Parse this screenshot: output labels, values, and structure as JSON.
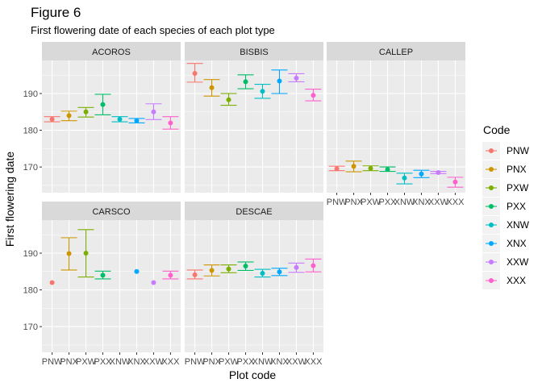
{
  "chart_data": {
    "type": "scatter",
    "title": "Figure 6",
    "subtitle": "First flowering date of each species of each plot type",
    "xlabel": "Plot code",
    "ylabel": "First flowering date",
    "ylim": [
      163,
      199
    ],
    "y_ticks": [
      170,
      180,
      190
    ],
    "categories": [
      "PNW",
      "PNX",
      "PXW",
      "PXX",
      "XNW",
      "XNX",
      "XXW",
      "XXX"
    ],
    "legend": {
      "title": "Code",
      "position": "right",
      "items": [
        "PNW",
        "PNX",
        "PXW",
        "PXX",
        "XNW",
        "XNX",
        "XXW",
        "XXX"
      ]
    },
    "colors": [
      "#F8766D",
      "#CD9600",
      "#7CAE00",
      "#00BE67",
      "#00BFC4",
      "#00A9FF",
      "#C77CFF",
      "#FF61CC"
    ],
    "panel_background": "#EBEBEB",
    "strip_background": "#D9D9D9",
    "grid": true,
    "facets": [
      {
        "name": "ACOROS",
        "points": [
          {
            "code": "PNW",
            "mean": 183.0,
            "low": 182.3,
            "high": 183.7
          },
          {
            "code": "PNX",
            "mean": 184.0,
            "low": 182.6,
            "high": 185.2
          },
          {
            "code": "PXW",
            "mean": 185.0,
            "low": 183.6,
            "high": 186.2
          },
          {
            "code": "PXX",
            "mean": 187.0,
            "low": 184.2,
            "high": 189.8
          },
          {
            "code": "XNW",
            "mean": 183.0,
            "low": 182.3,
            "high": 183.7
          },
          {
            "code": "XNX",
            "mean": 182.6,
            "low": 182.0,
            "high": 183.2
          },
          {
            "code": "XXW",
            "mean": 185.0,
            "low": 182.9,
            "high": 187.2
          },
          {
            "code": "XXX",
            "mean": 182.0,
            "low": 180.3,
            "high": 183.7
          }
        ]
      },
      {
        "name": "BISBIS",
        "points": [
          {
            "code": "PNW",
            "mean": 195.5,
            "low": 193.1,
            "high": 198.2
          },
          {
            "code": "PNX",
            "mean": 191.6,
            "low": 189.3,
            "high": 193.8
          },
          {
            "code": "PXW",
            "mean": 188.3,
            "low": 186.8,
            "high": 190.0
          },
          {
            "code": "PXX",
            "mean": 193.2,
            "low": 191.3,
            "high": 195.1
          },
          {
            "code": "XNW",
            "mean": 190.6,
            "low": 188.7,
            "high": 192.5
          },
          {
            "code": "XNX",
            "mean": 193.4,
            "low": 190.0,
            "high": 196.4
          },
          {
            "code": "XXW",
            "mean": 194.2,
            "low": 193.2,
            "high": 195.4
          },
          {
            "code": "XXX",
            "mean": 189.5,
            "low": 188.0,
            "high": 191.2
          }
        ]
      },
      {
        "name": "CALLEP",
        "points": [
          {
            "code": "PNW",
            "mean": 169.5,
            "low": 169.0,
            "high": 170.2
          },
          {
            "code": "PNX",
            "mean": 170.2,
            "low": 168.7,
            "high": 171.6
          },
          {
            "code": "PXW",
            "mean": 169.6,
            "low": 169.0,
            "high": 170.3
          },
          {
            "code": "PXX",
            "mean": 169.3,
            "low": 168.8,
            "high": 170.0
          },
          {
            "code": "XNW",
            "mean": 167.0,
            "low": 165.4,
            "high": 168.3
          },
          {
            "code": "XNX",
            "mean": 168.1,
            "low": 167.1,
            "high": 169.1
          },
          {
            "code": "XXW",
            "mean": 168.5,
            "low": 168.2,
            "high": 168.8
          },
          {
            "code": "XXX",
            "mean": 165.9,
            "low": 164.5,
            "high": 167.2
          }
        ]
      },
      {
        "name": "CARSCO",
        "points": [
          {
            "code": "PNW",
            "mean": 182.0,
            "low": 182.0,
            "high": 182.0
          },
          {
            "code": "PNX",
            "mean": 189.9,
            "low": 185.4,
            "high": 194.2
          },
          {
            "code": "PXW",
            "mean": 190.0,
            "low": 183.5,
            "high": 196.4
          },
          {
            "code": "PXX",
            "mean": 184.0,
            "low": 183.0,
            "high": 185.1
          },
          {
            "code": "XNX",
            "mean": 185.0,
            "low": 185.0,
            "high": 185.0
          },
          {
            "code": "XXW",
            "mean": 182.0,
            "low": 182.0,
            "high": 182.0
          },
          {
            "code": "XXX",
            "mean": 184.0,
            "low": 183.0,
            "high": 185.1
          }
        ]
      },
      {
        "name": "DESCAE",
        "points": [
          {
            "code": "PNW",
            "mean": 184.1,
            "low": 183.0,
            "high": 185.4
          },
          {
            "code": "PNX",
            "mean": 185.3,
            "low": 183.8,
            "high": 186.8
          },
          {
            "code": "PXW",
            "mean": 185.7,
            "low": 184.7,
            "high": 186.8
          },
          {
            "code": "PXX",
            "mean": 186.5,
            "low": 185.3,
            "high": 187.6
          },
          {
            "code": "XNW",
            "mean": 184.5,
            "low": 183.5,
            "high": 185.6
          },
          {
            "code": "XNX",
            "mean": 184.9,
            "low": 183.9,
            "high": 185.9
          },
          {
            "code": "XXW",
            "mean": 186.1,
            "low": 184.8,
            "high": 187.3
          },
          {
            "code": "XXX",
            "mean": 186.6,
            "low": 184.9,
            "high": 188.4
          }
        ]
      }
    ]
  }
}
